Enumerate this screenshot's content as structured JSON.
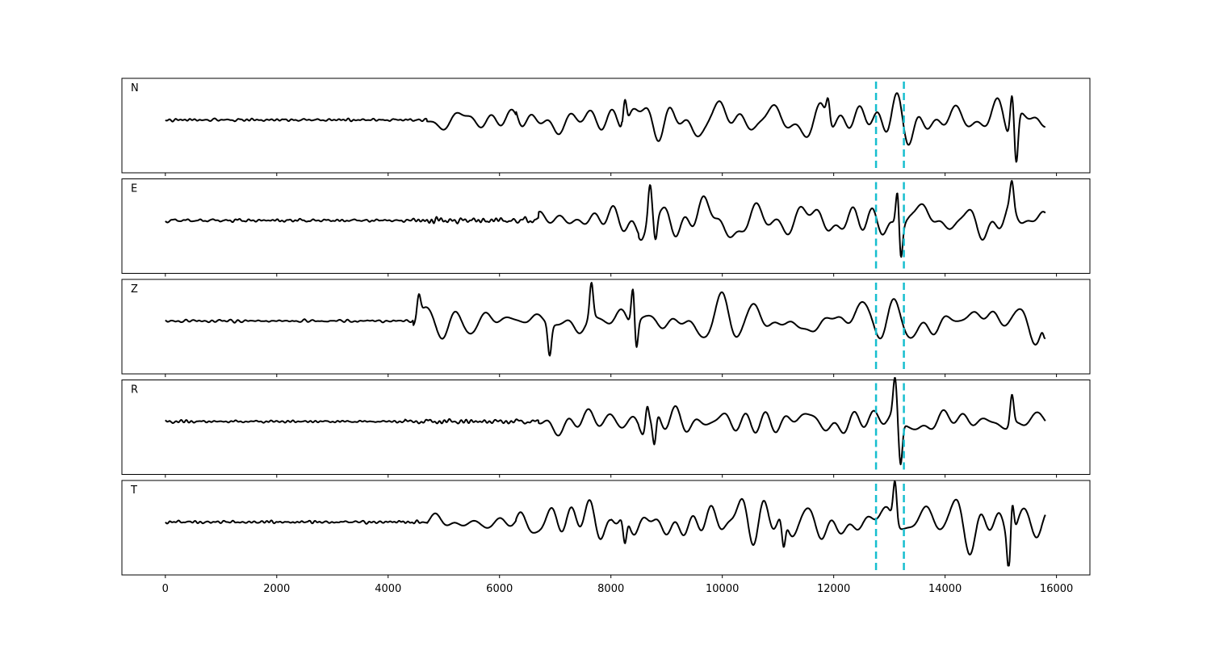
{
  "chart_data": {
    "type": "line",
    "title": "",
    "xlabel": "",
    "ylabel": "",
    "xlim": [
      -780,
      16600
    ],
    "x_ticks": [
      0,
      2000,
      4000,
      6000,
      8000,
      10000,
      12000,
      14000,
      16000
    ],
    "x_tick_labels": [
      "0",
      "2000",
      "4000",
      "6000",
      "8000",
      "10000",
      "12000",
      "14000",
      "16000"
    ],
    "grid": false,
    "line_color": "#000000",
    "marker_color": "#17becf",
    "vertical_markers": [
      12760,
      13260
    ],
    "sample_range": [
      0,
      15800
    ],
    "channels": [
      {
        "label": "N",
        "onset": 4700,
        "phases": [
          {
            "start": 4700,
            "amp": 0.25
          },
          {
            "start": 6300,
            "amp": 0.45
          },
          {
            "start": 8200,
            "amp": 0.6
          }
        ],
        "peaks": [
          {
            "x": 8250,
            "amp": 0.7
          },
          {
            "x": 11900,
            "amp": 0.55
          },
          {
            "x": 15200,
            "amp": 0.9
          },
          {
            "x": 15280,
            "amp": -1.0
          }
        ]
      },
      {
        "label": "E",
        "onset": 6700,
        "phases": [
          {
            "start": 4200,
            "amp": 0.08
          },
          {
            "start": 6700,
            "amp": 0.4
          },
          {
            "start": 8500,
            "amp": 0.5
          }
        ],
        "peaks": [
          {
            "x": 8700,
            "amp": 0.72
          },
          {
            "x": 8800,
            "amp": -0.6
          },
          {
            "x": 13150,
            "amp": 1.0
          },
          {
            "x": 13200,
            "amp": -0.85
          },
          {
            "x": 15200,
            "amp": 0.55
          }
        ]
      },
      {
        "label": "Z",
        "onset": 4450,
        "phases": [
          {
            "start": 4450,
            "amp": 0.35
          },
          {
            "start": 6850,
            "amp": 0.55
          },
          {
            "start": 9000,
            "amp": 0.4
          }
        ],
        "peaks": [
          {
            "x": 4550,
            "amp": 0.5
          },
          {
            "x": 6900,
            "amp": -0.7
          },
          {
            "x": 7650,
            "amp": 0.8
          },
          {
            "x": 8400,
            "amp": 1.0
          },
          {
            "x": 8450,
            "amp": -0.75
          },
          {
            "x": 15800,
            "amp": -0.4
          }
        ]
      },
      {
        "label": "R",
        "onset": 6700,
        "phases": [
          {
            "start": 4300,
            "amp": 0.07
          },
          {
            "start": 6700,
            "amp": 0.38
          },
          {
            "start": 8500,
            "amp": 0.45
          }
        ],
        "peaks": [
          {
            "x": 8650,
            "amp": 0.6
          },
          {
            "x": 8780,
            "amp": -0.75
          },
          {
            "x": 13100,
            "amp": 0.85
          },
          {
            "x": 13200,
            "amp": -1.0
          },
          {
            "x": 15200,
            "amp": 0.7
          }
        ]
      },
      {
        "label": "T",
        "onset": 4700,
        "phases": [
          {
            "start": 4700,
            "amp": 0.22
          },
          {
            "start": 6300,
            "amp": 0.45
          },
          {
            "start": 8000,
            "amp": 0.6
          }
        ],
        "peaks": [
          {
            "x": 8250,
            "amp": -0.65
          },
          {
            "x": 11100,
            "amp": -0.7
          },
          {
            "x": 13100,
            "amp": 0.95
          },
          {
            "x": 15200,
            "amp": 0.95
          },
          {
            "x": 15150,
            "amp": -0.9
          }
        ]
      }
    ]
  }
}
